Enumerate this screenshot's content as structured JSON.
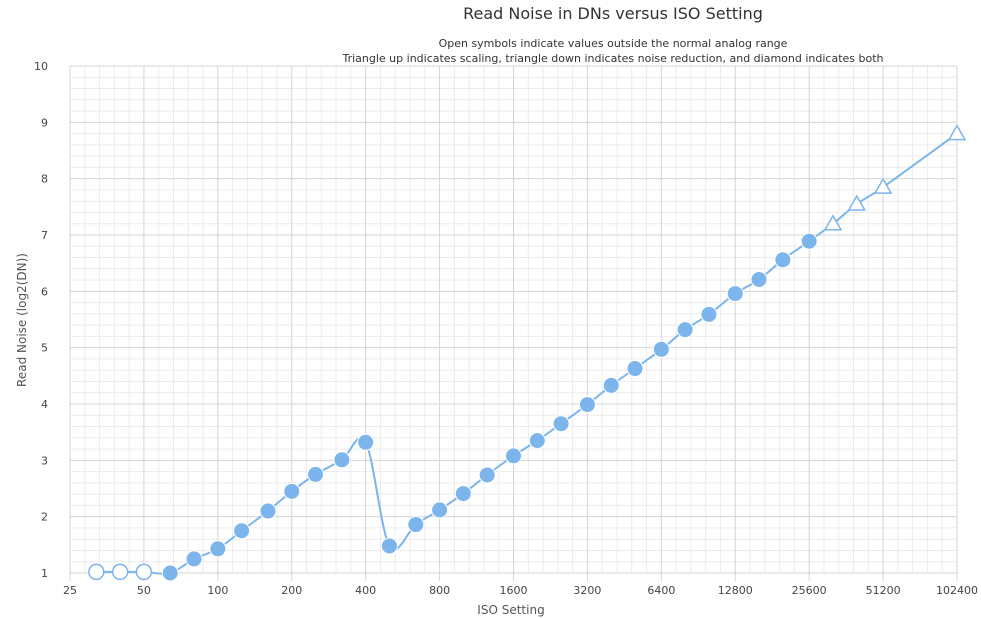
{
  "chart_data": {
    "type": "line",
    "title": "Read Noise in DNs versus ISO Setting",
    "subtitle_lines": [
      "Open symbols indicate values outside the normal analog range",
      "Triangle up indicates scaling, triangle down indicates noise reduction, and diamond indicates both"
    ],
    "xlabel": "ISO Setting",
    "ylabel": "Read Noise (log2(DN))",
    "x_scale": "log2",
    "xlim": [
      25,
      102400
    ],
    "ylim": [
      1,
      10
    ],
    "x_ticks": [
      "25",
      "50",
      "100",
      "200",
      "400",
      "800",
      "1600",
      "3200",
      "6400",
      "12800",
      "25600",
      "51200",
      "102400"
    ],
    "y_ticks": [
      "1",
      "2",
      "3",
      "4",
      "5",
      "6",
      "7",
      "8",
      "9",
      "10"
    ],
    "grid": true,
    "legend": "none",
    "color": "#7cb5ec",
    "series": [
      {
        "points": [
          {
            "x": 32,
            "y": 1.02,
            "marker": "open-circle"
          },
          {
            "x": 40,
            "y": 1.02,
            "marker": "open-circle"
          },
          {
            "x": 50,
            "y": 1.02,
            "marker": "open-circle"
          },
          {
            "x": 64,
            "y": 1.0,
            "marker": "circle"
          },
          {
            "x": 80,
            "y": 1.25,
            "marker": "circle"
          },
          {
            "x": 100,
            "y": 1.43,
            "marker": "circle"
          },
          {
            "x": 125,
            "y": 1.75,
            "marker": "circle"
          },
          {
            "x": 160,
            "y": 2.1,
            "marker": "circle"
          },
          {
            "x": 200,
            "y": 2.45,
            "marker": "circle"
          },
          {
            "x": 250,
            "y": 2.75,
            "marker": "circle"
          },
          {
            "x": 320,
            "y": 3.01,
            "marker": "circle"
          },
          {
            "x": 400,
            "y": 3.32,
            "marker": "circle"
          },
          {
            "x": 500,
            "y": 1.48,
            "marker": "circle"
          },
          {
            "x": 640,
            "y": 1.86,
            "marker": "circle"
          },
          {
            "x": 800,
            "y": 2.12,
            "marker": "circle"
          },
          {
            "x": 1000,
            "y": 2.41,
            "marker": "circle"
          },
          {
            "x": 1250,
            "y": 2.74,
            "marker": "circle"
          },
          {
            "x": 1600,
            "y": 3.08,
            "marker": "circle"
          },
          {
            "x": 2000,
            "y": 3.35,
            "marker": "circle"
          },
          {
            "x": 2500,
            "y": 3.65,
            "marker": "circle"
          },
          {
            "x": 3200,
            "y": 3.99,
            "marker": "circle"
          },
          {
            "x": 4000,
            "y": 4.33,
            "marker": "circle"
          },
          {
            "x": 5000,
            "y": 4.63,
            "marker": "circle"
          },
          {
            "x": 6400,
            "y": 4.97,
            "marker": "circle"
          },
          {
            "x": 8000,
            "y": 5.32,
            "marker": "circle"
          },
          {
            "x": 10000,
            "y": 5.59,
            "marker": "circle"
          },
          {
            "x": 12800,
            "y": 5.96,
            "marker": "circle"
          },
          {
            "x": 16000,
            "y": 6.21,
            "marker": "circle"
          },
          {
            "x": 20000,
            "y": 6.56,
            "marker": "circle"
          },
          {
            "x": 25600,
            "y": 6.89,
            "marker": "circle"
          },
          {
            "x": 32000,
            "y": 7.2,
            "marker": "open-triangle-up"
          },
          {
            "x": 40000,
            "y": 7.55,
            "marker": "open-triangle-up"
          },
          {
            "x": 51200,
            "y": 7.85,
            "marker": "open-triangle-up"
          },
          {
            "x": 102400,
            "y": 8.8,
            "marker": "open-triangle-up"
          }
        ]
      }
    ]
  }
}
